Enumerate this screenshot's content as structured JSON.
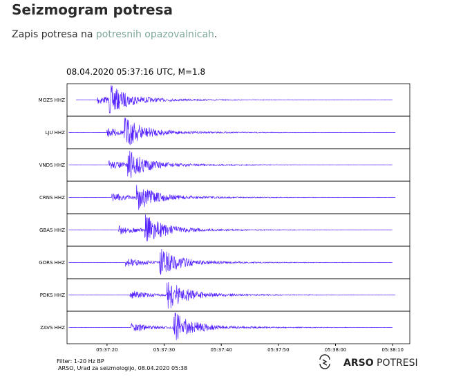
{
  "page": {
    "title": "Seizmogram potresa",
    "intro_prefix": "Zapis potresa na ",
    "intro_link": "potresnih opazovalnicah",
    "intro_suffix": "."
  },
  "chart_data": {
    "type": "line",
    "title": "08.04.2020  05:37:16 UTC, M=1.8",
    "x_ticks": [
      "05:37:20",
      "05:37:30",
      "05:37:40",
      "05:37:50",
      "05:38:00",
      "05:38:10"
    ],
    "x_tick_seconds": [
      20,
      30,
      40,
      50,
      60,
      70
    ],
    "x_range_seconds": [
      13,
      73
    ],
    "trace_color": "#5522ff",
    "stations": [
      {
        "label": "MOZS HHZ",
        "start": 14.6,
        "p": 18.2,
        "s": 20.4,
        "end": 70,
        "amp": 0.9
      },
      {
        "label": "LJU HHZ",
        "start": 13.3,
        "p": 20.0,
        "s": 23.0,
        "end": 70.5,
        "amp": 0.95
      },
      {
        "label": "VNDS HHZ",
        "start": 13.3,
        "p": 20.2,
        "s": 23.6,
        "end": 70,
        "amp": 0.9
      },
      {
        "label": "CRNS HHZ",
        "start": 13.3,
        "p": 20.8,
        "s": 25.1,
        "end": 70.5,
        "amp": 0.8
      },
      {
        "label": "GBAS HHZ",
        "start": 13.3,
        "p": 22.0,
        "s": 26.6,
        "end": 70,
        "amp": 0.9
      },
      {
        "label": "GORS HHZ",
        "start": 13.3,
        "p": 23.2,
        "s": 29.2,
        "end": 70,
        "amp": 0.9
      },
      {
        "label": "PDKS HHZ",
        "start": 13.3,
        "p": 24.0,
        "s": 30.5,
        "end": 70.5,
        "amp": 0.9
      },
      {
        "label": "ZAVS HHZ",
        "start": 13.3,
        "p": 24.2,
        "s": 31.6,
        "end": 70,
        "amp": 0.95
      }
    ],
    "footer": {
      "filter": "Filter: 1-20 Hz BP",
      "credit": "ARSO, Urad za seizmologijo, 08.04.2020  05:38"
    }
  },
  "logo": {
    "bold": "ARSO",
    "light": " POTRESI"
  }
}
